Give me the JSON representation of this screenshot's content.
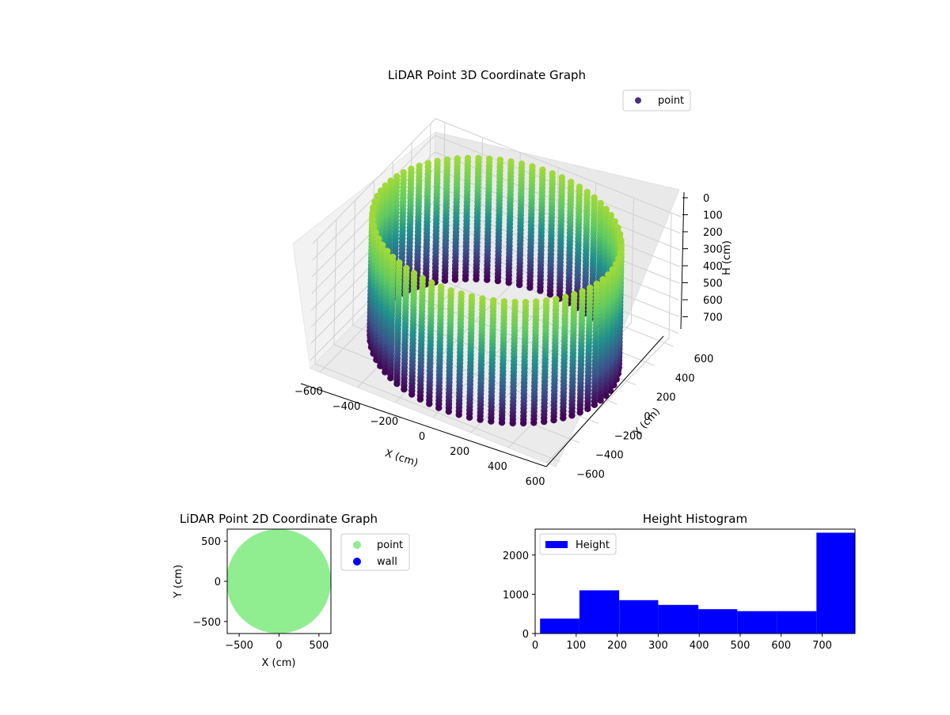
{
  "chart_data": [
    {
      "type": "scatter",
      "title": "LiDAR Point 3D Coordinate Graph",
      "projection": "3d",
      "xlabel": "X (cm)",
      "ylabel": "Y (cm)",
      "zlabel": "H (cm)",
      "x_ticks": [
        "−600",
        "−400",
        "−200",
        "0",
        "200",
        "400",
        "600"
      ],
      "y_ticks": [
        "−600",
        "−400",
        "−200",
        "0",
        "200",
        "400",
        "600"
      ],
      "z_ticks": [
        "0",
        "100",
        "200",
        "300",
        "400",
        "500",
        "600",
        "700"
      ],
      "xlim": [
        -650,
        650
      ],
      "ylim": [
        -650,
        650
      ],
      "zlim": [
        750,
        0
      ],
      "z_axis_inverted": true,
      "colormap": "viridis",
      "legend": {
        "placement": "top-right",
        "entries": [
          {
            "label": "point",
            "color": "#46317e"
          }
        ]
      },
      "series": [
        {
          "name": "point",
          "shape": "cylindrical wall of points, radius about 600 cm, height 0 to 750 cm",
          "color_by": "height"
        }
      ]
    },
    {
      "type": "scatter",
      "title": "LiDAR Point 2D Coordinate Graph",
      "xlabel": "X (cm)",
      "ylabel": "Y (cm)",
      "x_ticks": [
        "−500",
        "0",
        "500"
      ],
      "y_ticks": [
        "500",
        "0",
        "−500"
      ],
      "xlim": [
        -650,
        650
      ],
      "ylim": [
        -650,
        650
      ],
      "legend": {
        "placement": "outside-right",
        "entries": [
          {
            "label": "point",
            "color": "#90ee90"
          },
          {
            "label": "wall",
            "color": "#0000ff"
          }
        ]
      },
      "series": [
        {
          "name": "point",
          "color": "#90ee90",
          "shape": "filled disc of points, radius about 650 cm centered at origin"
        },
        {
          "name": "wall",
          "color": "#0000ff"
        }
      ]
    },
    {
      "type": "bar",
      "title": "Height Histogram",
      "x_ticks": [
        "0",
        "100",
        "200",
        "300",
        "400",
        "500",
        "600",
        "700"
      ],
      "y_ticks": [
        "0",
        "1000",
        "2000"
      ],
      "xlim": [
        0,
        780
      ],
      "ylim": [
        0,
        2660
      ],
      "legend": {
        "placement": "top-left",
        "entries": [
          {
            "label": "Height",
            "color": "#0000ff"
          }
        ]
      },
      "color": "#0000ff",
      "bins": [
        {
          "x0": 12,
          "x1": 108,
          "value": 380
        },
        {
          "x0": 108,
          "x1": 205,
          "value": 1100
        },
        {
          "x0": 205,
          "x1": 300,
          "value": 850
        },
        {
          "x0": 300,
          "x1": 398,
          "value": 730
        },
        {
          "x0": 398,
          "x1": 493,
          "value": 620
        },
        {
          "x0": 493,
          "x1": 590,
          "value": 570
        },
        {
          "x0": 590,
          "x1": 686,
          "value": 570
        },
        {
          "x0": 686,
          "x1": 780,
          "value": 2570
        }
      ]
    }
  ]
}
